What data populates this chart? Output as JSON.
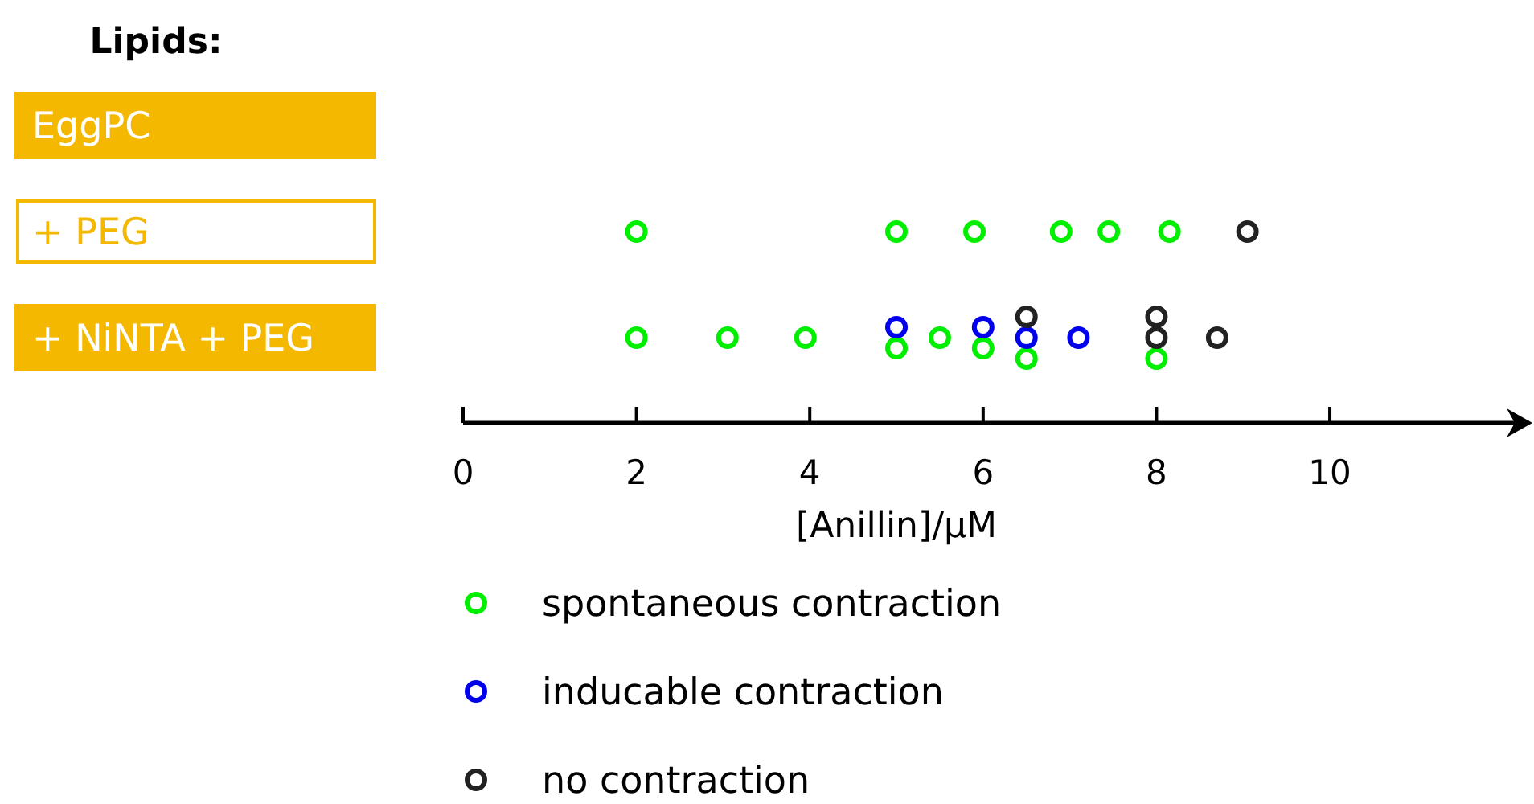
{
  "chart_data": {
    "type": "scatter",
    "orientation": "horizontal",
    "ylabel": "Lipids:",
    "xlabel": "[Anillin]/μM",
    "xlim": [
      0,
      12.3
    ],
    "xticks": [
      0,
      2,
      4,
      6,
      8,
      10
    ],
    "categories": [
      "EggPC",
      "+ PEG",
      "+ NiNTA + PEG"
    ],
    "marker": "circle",
    "legend": "bottom left",
    "grid": false,
    "series": [
      {
        "name": "spontaneous contraction",
        "color": "#00ee00",
        "x": [
          "+ PEG",
          "+ PEG",
          "+ PEG",
          "+ PEG",
          "+ PEG",
          "+ PEG",
          "+ NiNTA + PEG",
          "+ NiNTA + PEG",
          "+ NiNTA + PEG",
          "+ NiNTA + PEG",
          "+ NiNTA + PEG",
          "+ NiNTA + PEG",
          "+ NiNTA + PEG",
          "+ NiNTA + PEG"
        ],
        "values": [
          2,
          5,
          5.9,
          6.9,
          7.45,
          8.15,
          2,
          3.05,
          3.95,
          5,
          5.5,
          6,
          6.5,
          8
        ]
      },
      {
        "name": "inducable contraction",
        "color": "#0000ee",
        "x": [
          "+ NiNTA + PEG",
          "+ NiNTA + PEG",
          "+ NiNTA + PEG",
          "+ NiNTA + PEG"
        ],
        "values": [
          5,
          6,
          6.5,
          7.1
        ]
      },
      {
        "name": "no contraction",
        "color": "#222222",
        "x": [
          "+ PEG",
          "+ NiNTA + PEG",
          "+ NiNTA + PEG",
          "+ NiNTA + PEG",
          "+ NiNTA + PEG"
        ],
        "values": [
          9.05,
          6.5,
          8,
          8,
          8.7
        ]
      }
    ]
  }
}
